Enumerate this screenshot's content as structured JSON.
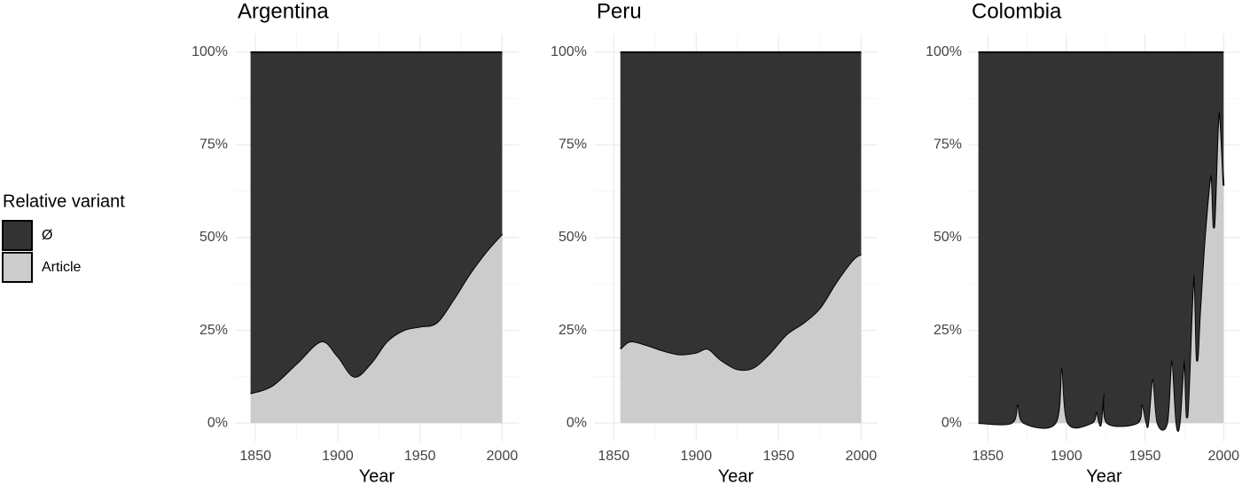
{
  "legend": {
    "title": "Relative variant"
  },
  "chart_data": [
    {
      "type": "stacked_area",
      "title": "Argentina",
      "xlabel": "Year",
      "x": [
        1847,
        1860,
        1875,
        1890,
        1900,
        1910,
        1920,
        1930,
        1940,
        1950,
        1960,
        1970,
        1980,
        1990,
        2000
      ],
      "series": [
        {
          "name": "Ø",
          "color": "#333333",
          "values": [
            92,
            90,
            84,
            78,
            82,
            87.5,
            84,
            78,
            75,
            74,
            73,
            67,
            60,
            54,
            49
          ]
        },
        {
          "name": "Article",
          "color": "#cccccc",
          "values": [
            8,
            10,
            16,
            22,
            18,
            12.5,
            16,
            22,
            25,
            26,
            27,
            33,
            40,
            46,
            51
          ]
        }
      ],
      "xlim": [
        1837.5,
        2010
      ],
      "xticks": [
        1850,
        1900,
        1950,
        2000
      ],
      "ylim": [
        -5,
        105
      ],
      "yticks": [
        {
          "value": 0,
          "label": "0%"
        },
        {
          "value": 25,
          "label": "25%"
        },
        {
          "value": 50,
          "label": "50%"
        },
        {
          "value": 75,
          "label": "75%"
        },
        {
          "value": 100,
          "label": "100%"
        }
      ],
      "grid": true
    },
    {
      "type": "stacked_area",
      "title": "Peru",
      "xlabel": "Year",
      "x": [
        1854,
        1860,
        1870,
        1880,
        1890,
        1900,
        1907,
        1915,
        1925,
        1935,
        1945,
        1955,
        1965,
        1975,
        1985,
        1995,
        2000
      ],
      "series": [
        {
          "name": "Ø",
          "color": "#333333",
          "values": [
            80,
            78,
            79,
            80.5,
            81.5,
            81,
            80,
            83,
            85.5,
            85,
            81,
            76,
            73,
            69,
            62,
            56,
            54.5
          ]
        },
        {
          "name": "Article",
          "color": "#cccccc",
          "values": [
            20,
            22,
            21,
            19.5,
            18.5,
            19,
            20,
            17,
            14.5,
            15,
            19,
            24,
            27,
            31,
            38,
            44,
            45.5
          ]
        }
      ],
      "xlim": [
        1838,
        2010
      ],
      "xticks": [
        1850,
        1900,
        1950,
        2000
      ],
      "ylim": [
        -5,
        105
      ],
      "yticks": [
        {
          "value": 0,
          "label": "0%"
        },
        {
          "value": 25,
          "label": "25%"
        },
        {
          "value": 50,
          "label": "50%"
        },
        {
          "value": 75,
          "label": "75%"
        },
        {
          "value": 100,
          "label": "100%"
        }
      ],
      "grid": true
    },
    {
      "type": "stacked_area",
      "title": "Colombia",
      "xlabel": "Year",
      "x": [
        1844,
        1865,
        1869,
        1873,
        1893,
        1897,
        1901,
        1916,
        1919,
        1921,
        1922,
        1924,
        1926,
        1945,
        1948,
        1951,
        1952,
        1955,
        1958,
        1964,
        1967,
        1970,
        1972,
        1975,
        1977,
        1981,
        1983,
        1985,
        1988,
        1992,
        1994,
        1997,
        2000
      ],
      "series": [
        {
          "name": "Ø",
          "color": "#333333",
          "values": [
            100,
            100,
            95,
            100,
            100,
            85,
            100,
            100,
            97,
            100,
            100,
            92,
            100,
            100,
            95,
            100,
            100,
            88,
            100,
            100,
            83,
            100,
            100,
            83,
            98,
            60,
            83,
            70,
            50,
            33,
            47,
            16,
            36
          ]
        },
        {
          "name": "Article",
          "color": "#cccccc",
          "values": [
            0,
            0,
            5,
            0,
            0,
            15,
            0,
            0,
            3,
            0,
            0,
            8,
            0,
            0,
            5,
            0,
            0,
            12,
            0,
            0,
            17,
            0,
            0,
            17,
            2,
            40,
            17,
            30,
            50,
            67,
            53,
            84,
            64
          ]
        }
      ],
      "xlim": [
        1838,
        2010
      ],
      "xticks": [
        1850,
        1900,
        1950,
        2000
      ],
      "ylim": [
        -5,
        105
      ],
      "yticks": [
        {
          "value": 0,
          "label": "0%"
        },
        {
          "value": 25,
          "label": "25%"
        },
        {
          "value": 50,
          "label": "50%"
        },
        {
          "value": 75,
          "label": "75%"
        },
        {
          "value": 100,
          "label": "100%"
        }
      ],
      "grid": true
    }
  ]
}
